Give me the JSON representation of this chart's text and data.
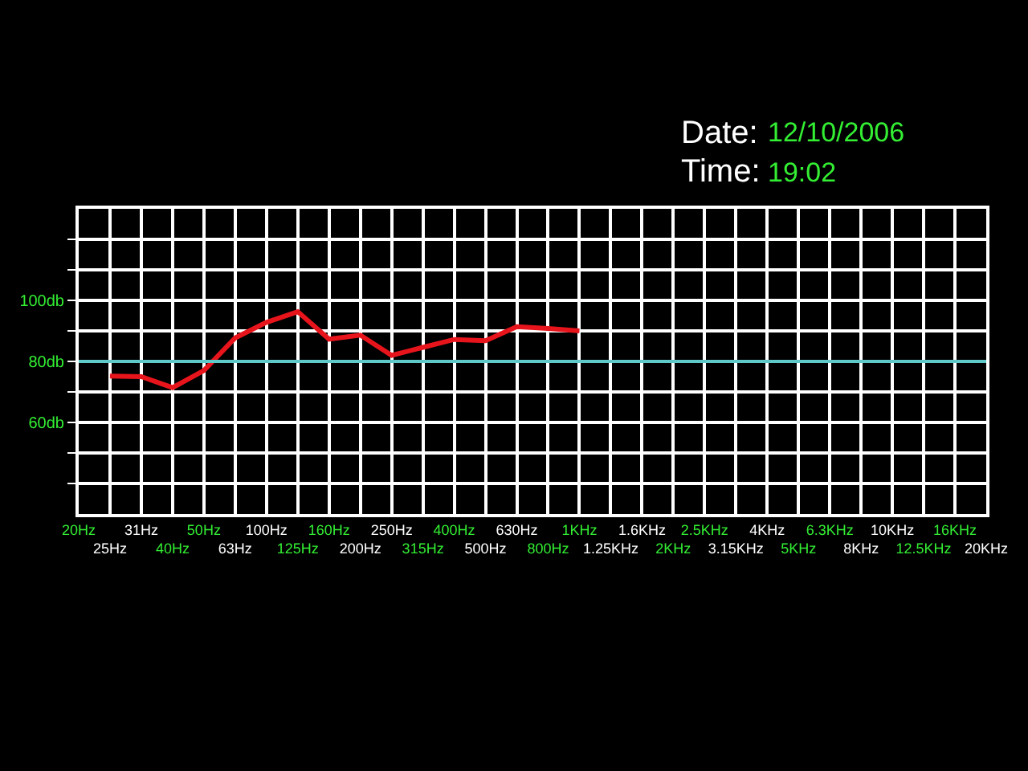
{
  "chart_data": {
    "type": "line",
    "annotations": [
      "Date:",
      "12/10/2006",
      "Time:",
      "19:02"
    ],
    "categories": [
      "20Hz",
      "25Hz",
      "31Hz",
      "40Hz",
      "50Hz",
      "63Hz",
      "100Hz",
      "125Hz",
      "160Hz",
      "200Hz",
      "250Hz",
      "315Hz",
      "400Hz",
      "500Hz",
      "630Hz",
      "800Hz",
      "1KHz",
      "1.25KHz",
      "1.6KHz",
      "2KHz",
      "2.5KHz",
      "3.15KHz",
      "4KHz",
      "5KHz",
      "6.3KHz",
      "8KHz",
      "10KHz",
      "12.5KHz",
      "16KHz",
      "20KHz"
    ],
    "series": [
      {
        "color": "#e8141c",
        "values": [
          null,
          75.2,
          75,
          71.4,
          77,
          87.7,
          92.8,
          96.3,
          87.3,
          88.6,
          82,
          84.6,
          87.2,
          86.8,
          91.4,
          90.8,
          90,
          null,
          null,
          null,
          null,
          null,
          null,
          null,
          null,
          null,
          null,
          null,
          null,
          null
        ]
      }
    ],
    "ylim": [
      30,
      130
    ],
    "yticks": [
      {
        "value": 40,
        "label": null
      },
      {
        "value": 50,
        "label": null
      },
      {
        "value": 60,
        "label": "60db"
      },
      {
        "value": 70,
        "label": null
      },
      {
        "value": 80,
        "label": "80db"
      },
      {
        "value": 90,
        "label": null
      },
      {
        "value": 100,
        "label": "100db"
      },
      {
        "value": 110,
        "label": null
      },
      {
        "value": 120,
        "label": null
      }
    ],
    "ref_lines": [
      {
        "axis": "y",
        "value": 80,
        "color": "#5fc8c8"
      }
    ],
    "grid": true,
    "marker": "none",
    "line_style": "solid"
  }
}
